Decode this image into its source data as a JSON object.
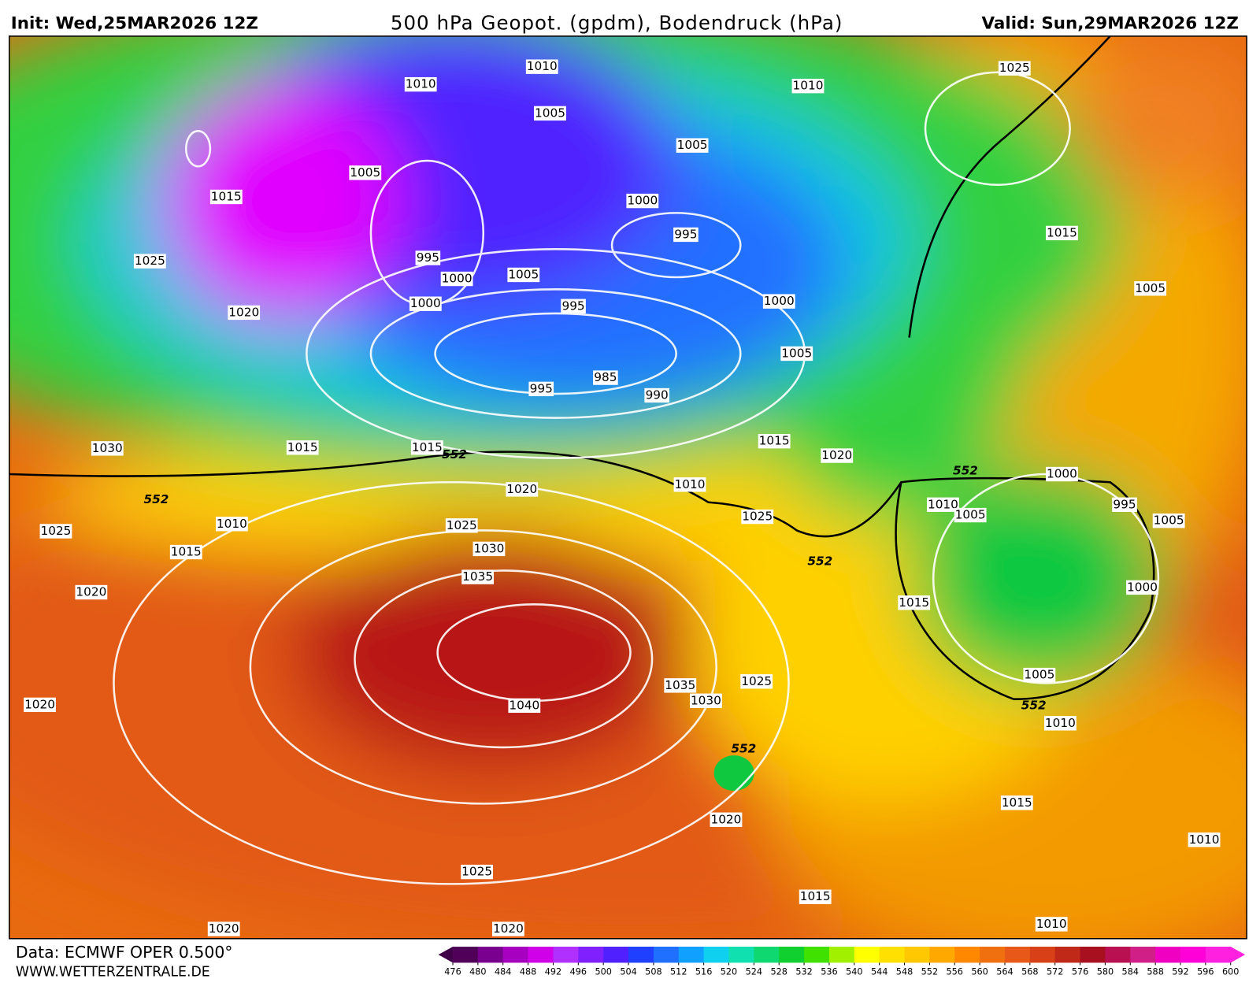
{
  "header": {
    "init": "Init: Wed,25MAR2026 12Z",
    "title": "500 hPa Geopot. (gpdm), Bodendruck (hPa)",
    "valid": "Valid: Sun,29MAR2026 12Z"
  },
  "isobar_labels": [
    1010,
    1010,
    1005,
    1010,
    1025,
    1005,
    1005,
    1015,
    1000,
    995,
    1015,
    1025,
    995,
    1000,
    1005,
    1000,
    995,
    1000,
    1005,
    1020,
    1005,
    985,
    995,
    990,
    1030,
    1015,
    1015,
    1015,
    1020,
    1000,
    1020,
    1010,
    1010,
    1005,
    995,
    1005,
    1025,
    1010,
    1025,
    1025,
    1015,
    1030,
    1035,
    1020,
    1015,
    1000,
    1005,
    1035,
    1025,
    1030,
    1040,
    1020,
    1010,
    1015,
    1020,
    1010,
    1025,
    1015,
    1010,
    1020,
    1020
  ],
  "contour_552_labels": [
    552,
    552,
    552,
    552,
    552,
    552
  ],
  "colorbar": {
    "ticks": [
      476,
      480,
      484,
      488,
      492,
      496,
      500,
      504,
      508,
      512,
      516,
      520,
      524,
      528,
      532,
      536,
      540,
      544,
      548,
      552,
      556,
      560,
      564,
      568,
      572,
      576,
      580,
      584,
      588,
      592,
      596,
      600
    ]
  },
  "footer": {
    "source": "Data: ECMWF OPER 0.500°",
    "url": "WWW.WETTERZENTRALE.DE"
  }
}
